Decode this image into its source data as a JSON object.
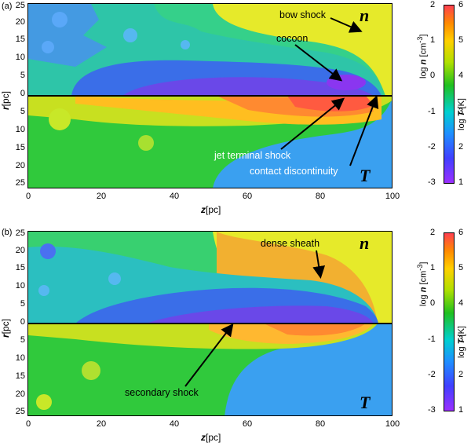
{
  "panels": [
    {
      "label": "(a)",
      "y_ticks_top": [
        "25",
        "20",
        "15",
        "10",
        "5",
        "0"
      ],
      "y_ticks_bottom": [
        "5",
        "10",
        "15",
        "20",
        "25"
      ],
      "x_ticks": [
        "0",
        "20",
        "40",
        "60",
        "80",
        "100"
      ],
      "xlabel_var": "z",
      "xlabel_unit": "[pc]",
      "ylabel_var": "r",
      "ylabel_unit": "[pc]",
      "letters": {
        "top": "n",
        "bottom": "T"
      },
      "annotations": {
        "a1": "bow shock",
        "a2": "cocoon",
        "a3": "jet terminal shock",
        "a4": "contact discontinuity"
      }
    },
    {
      "label": "(b)",
      "y_ticks_top": [
        "25",
        "20",
        "15",
        "10",
        "5",
        "0"
      ],
      "y_ticks_bottom": [
        "5",
        "10",
        "15",
        "20",
        "25"
      ],
      "x_ticks": [
        "0",
        "20",
        "40",
        "60",
        "80",
        "100"
      ],
      "xlabel_var": "z",
      "xlabel_unit": "[pc]",
      "ylabel_var": "r",
      "ylabel_unit": "[pc]",
      "letters": {
        "top": "n",
        "bottom": "T"
      },
      "annotations": {
        "a1": "dense sheath",
        "a2": "secondary shock"
      }
    }
  ],
  "colorbar": {
    "n_ticks": [
      "2",
      "1",
      "0",
      "-1",
      "-2",
      "-3"
    ],
    "t_ticks": [
      "6",
      "5",
      "4",
      "3",
      "2",
      "1"
    ],
    "n_label_pre": "log ",
    "n_label_var": "n",
    "n_label_unit": " [cm",
    "n_label_exp": "-3",
    "n_label_close": "]",
    "t_label_pre": "log ",
    "t_label_var": "T",
    "t_label_unit": " [K]"
  }
}
